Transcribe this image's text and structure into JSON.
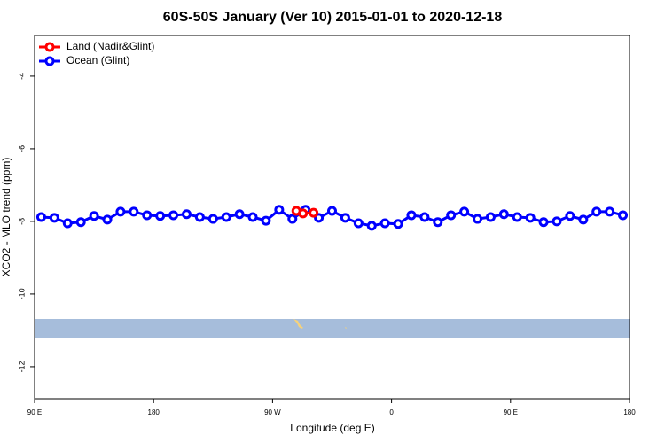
{
  "chart_data": {
    "type": "line",
    "title": "60S-50S January (Ver 10)   2015-01-01 to 2020-12-18",
    "x_label": "Longitude (deg E)",
    "y_label": "XCO2 - MLO trend (ppm)",
    "xlim": [
      90,
      540
    ],
    "xticks": [
      {
        "value": 90,
        "label": "90 E"
      },
      {
        "value": 180,
        "label": "180"
      },
      {
        "value": 270,
        "label": "90 W"
      },
      {
        "value": 360,
        "label": "0"
      },
      {
        "value": 450,
        "label": "90 E"
      },
      {
        "value": 540,
        "label": "180"
      }
    ],
    "ylim": [
      -12.88,
      -2.88
    ],
    "yticks": [
      -12,
      -10,
      -8,
      -6,
      -4
    ],
    "legend": "top-left",
    "series": [
      {
        "name": "Land (Nadir&Glint)",
        "color": "#ff0000",
        "x": [
          288,
          293,
          301
        ],
        "values": [
          -7.71,
          -7.78,
          -7.76
        ]
      },
      {
        "name": "Ocean (Glint)",
        "color": "#0000ff",
        "x": [
          95,
          105,
          115,
          125,
          135,
          145,
          155,
          165,
          175,
          185,
          195,
          205,
          215,
          225,
          235,
          245,
          255,
          265,
          275,
          285,
          295,
          305,
          315,
          325,
          335,
          345,
          355,
          365,
          375,
          385,
          395,
          405,
          415,
          425,
          435,
          445,
          455,
          465,
          475,
          485,
          495,
          505,
          515,
          525,
          535
        ],
        "values": [
          -7.88,
          -7.9,
          -8.05,
          -8.02,
          -7.85,
          -7.95,
          -7.73,
          -7.73,
          -7.83,
          -7.85,
          -7.83,
          -7.8,
          -7.88,
          -7.93,
          -7.88,
          -7.8,
          -7.88,
          -7.98,
          -7.68,
          -7.93,
          -7.68,
          -7.9,
          -7.71,
          -7.9,
          -8.05,
          -8.12,
          -8.05,
          -8.07,
          -7.83,
          -7.88,
          -8.02,
          -7.83,
          -7.73,
          -7.93,
          -7.88,
          -7.8,
          -7.88,
          -7.9,
          -8.02,
          -8.0,
          -7.85,
          -7.95,
          -7.73,
          -7.73,
          -7.83
        ]
      }
    ]
  }
}
